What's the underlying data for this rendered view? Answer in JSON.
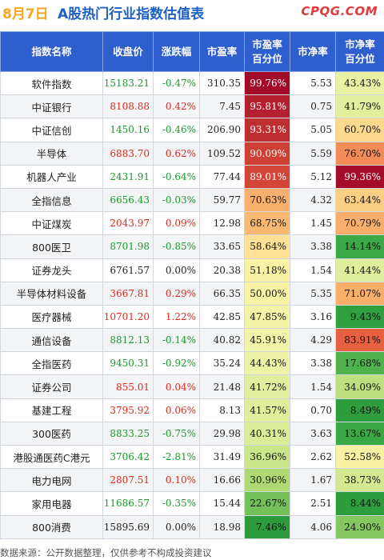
{
  "header": {
    "date": "8月7日",
    "title": "A股热门行业指数估值表",
    "brand": "CPQG.COM"
  },
  "columns": [
    "指数名称",
    "收盘价",
    "涨跌幅",
    "市盈率",
    "市盈率\n百分位",
    "市净率",
    "市净率\n百分位"
  ],
  "colors": {
    "header_bg": "#2f5fce",
    "up": "#e0281e",
    "down": "#1a9a2c"
  },
  "rows": [
    {
      "name": "软件指数",
      "close": "15183.21",
      "change": "-0.47%",
      "pe": "310.35",
      "pe_pct": "99.76%",
      "pb": "5.53",
      "pb_pct": "43.43%"
    },
    {
      "name": "中证银行",
      "close": "8108.88",
      "change": "0.42%",
      "pe": "7.45",
      "pe_pct": "95.81%",
      "pb": "0.75",
      "pb_pct": "41.79%"
    },
    {
      "name": "中证信创",
      "close": "1450.16",
      "change": "-0.46%",
      "pe": "206.90",
      "pe_pct": "93.31%",
      "pb": "5.05",
      "pb_pct": "60.70%"
    },
    {
      "name": "半导体",
      "close": "6883.70",
      "change": "0.62%",
      "pe": "109.52",
      "pe_pct": "90.09%",
      "pb": "5.59",
      "pb_pct": "76.70%"
    },
    {
      "name": "机器人产业",
      "close": "2431.91",
      "change": "-0.64%",
      "pe": "77.44",
      "pe_pct": "89.01%",
      "pb": "5.12",
      "pb_pct": "99.36%"
    },
    {
      "name": "全指信息",
      "close": "6656.43",
      "change": "-0.03%",
      "pe": "59.77",
      "pe_pct": "70.63%",
      "pb": "4.32",
      "pb_pct": "63.44%"
    },
    {
      "name": "中证煤炭",
      "close": "2043.97",
      "change": "0.09%",
      "pe": "12.98",
      "pe_pct": "68.75%",
      "pb": "1.45",
      "pb_pct": "70.79%"
    },
    {
      "name": "800医卫",
      "close": "8701.98",
      "change": "-0.85%",
      "pe": "33.65",
      "pe_pct": "58.64%",
      "pb": "3.38",
      "pb_pct": "14.14%"
    },
    {
      "name": "证券龙头",
      "close": "6761.57",
      "change": "0.00%",
      "pe": "20.38",
      "pe_pct": "51.18%",
      "pb": "1.54",
      "pb_pct": "41.44%"
    },
    {
      "name": "半导体材料设备",
      "close": "3667.81",
      "change": "0.29%",
      "pe": "66.35",
      "pe_pct": "50.00%",
      "pb": "5.35",
      "pb_pct": "71.07%"
    },
    {
      "name": "医疗器械",
      "close": "10701.20",
      "change": "1.22%",
      "pe": "42.85",
      "pe_pct": "47.85%",
      "pb": "3.16",
      "pb_pct": "9.43%"
    },
    {
      "name": "通信设备",
      "close": "8812.13",
      "change": "-0.14%",
      "pe": "40.82",
      "pe_pct": "45.91%",
      "pb": "4.29",
      "pb_pct": "83.91%"
    },
    {
      "name": "全指医药",
      "close": "9450.31",
      "change": "-0.92%",
      "pe": "35.24",
      "pe_pct": "44.43%",
      "pb": "3.38",
      "pb_pct": "17.68%"
    },
    {
      "name": "证券公司",
      "close": "855.01",
      "change": "0.04%",
      "pe": "21.48",
      "pe_pct": "41.72%",
      "pb": "1.54",
      "pb_pct": "34.09%"
    },
    {
      "name": "基建工程",
      "close": "3795.92",
      "change": "0.06%",
      "pe": "8.13",
      "pe_pct": "41.57%",
      "pb": "0.70",
      "pb_pct": "8.49%"
    },
    {
      "name": "300医药",
      "close": "8833.25",
      "change": "-0.75%",
      "pe": "29.98",
      "pe_pct": "40.31%",
      "pb": "3.63",
      "pb_pct": "13.67%"
    },
    {
      "name": "港股通医药C港元",
      "close": "3706.42",
      "change": "-2.81%",
      "pe": "31.49",
      "pe_pct": "36.96%",
      "pb": "2.62",
      "pb_pct": "52.58%"
    },
    {
      "name": "电力电网",
      "close": "2807.51",
      "change": "0.10%",
      "pe": "16.66",
      "pe_pct": "30.96%",
      "pb": "1.67",
      "pb_pct": "38.73%"
    },
    {
      "name": "家用电器",
      "close": "11686.57",
      "change": "-0.35%",
      "pe": "15.44",
      "pe_pct": "22.67%",
      "pb": "2.51",
      "pb_pct": "8.44%"
    },
    {
      "name": "800消费",
      "close": "15895.69",
      "change": "0.00%",
      "pe": "18.98",
      "pe_pct": "7.46%",
      "pb": "4.06",
      "pb_pct": "24.90%"
    }
  ],
  "footer": "数据来源：公开数据整理，仅供参考不构成投资建议"
}
